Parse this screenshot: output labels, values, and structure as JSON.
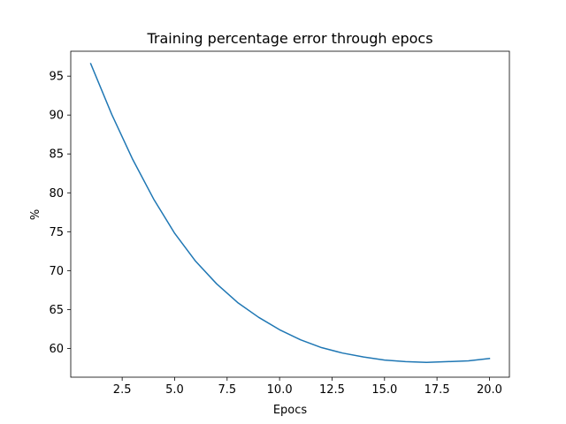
{
  "chart_data": {
    "type": "line",
    "title": "Training percentage error through epocs",
    "xlabel": "Epocs",
    "ylabel": "%",
    "xlim": [
      0.05,
      20.95
    ],
    "ylim": [
      56.3,
      98.2
    ],
    "grid": false,
    "x_ticks": [
      2.5,
      5.0,
      7.5,
      10.0,
      12.5,
      15.0,
      17.5,
      20.0
    ],
    "x_tick_labels": [
      "2.5",
      "5.0",
      "7.5",
      "10.0",
      "12.5",
      "15.0",
      "17.5",
      "20.0"
    ],
    "y_ticks": [
      60,
      65,
      70,
      75,
      80,
      85,
      90,
      95
    ],
    "y_tick_labels": [
      "60",
      "65",
      "70",
      "75",
      "80",
      "85",
      "90",
      "95"
    ],
    "colors": {
      "line": "#1f77b4"
    },
    "series": [
      {
        "x": [
          1,
          2,
          3,
          4,
          5,
          6,
          7,
          8,
          9,
          10,
          11,
          12,
          13,
          14,
          15,
          16,
          17,
          18,
          19,
          20
        ],
        "y": [
          96.6,
          90.1,
          84.3,
          79.2,
          74.8,
          71.2,
          68.3,
          65.9,
          64.0,
          62.4,
          61.1,
          60.1,
          59.4,
          58.9,
          58.5,
          58.3,
          58.2,
          58.3,
          58.4,
          58.7
        ]
      }
    ]
  }
}
